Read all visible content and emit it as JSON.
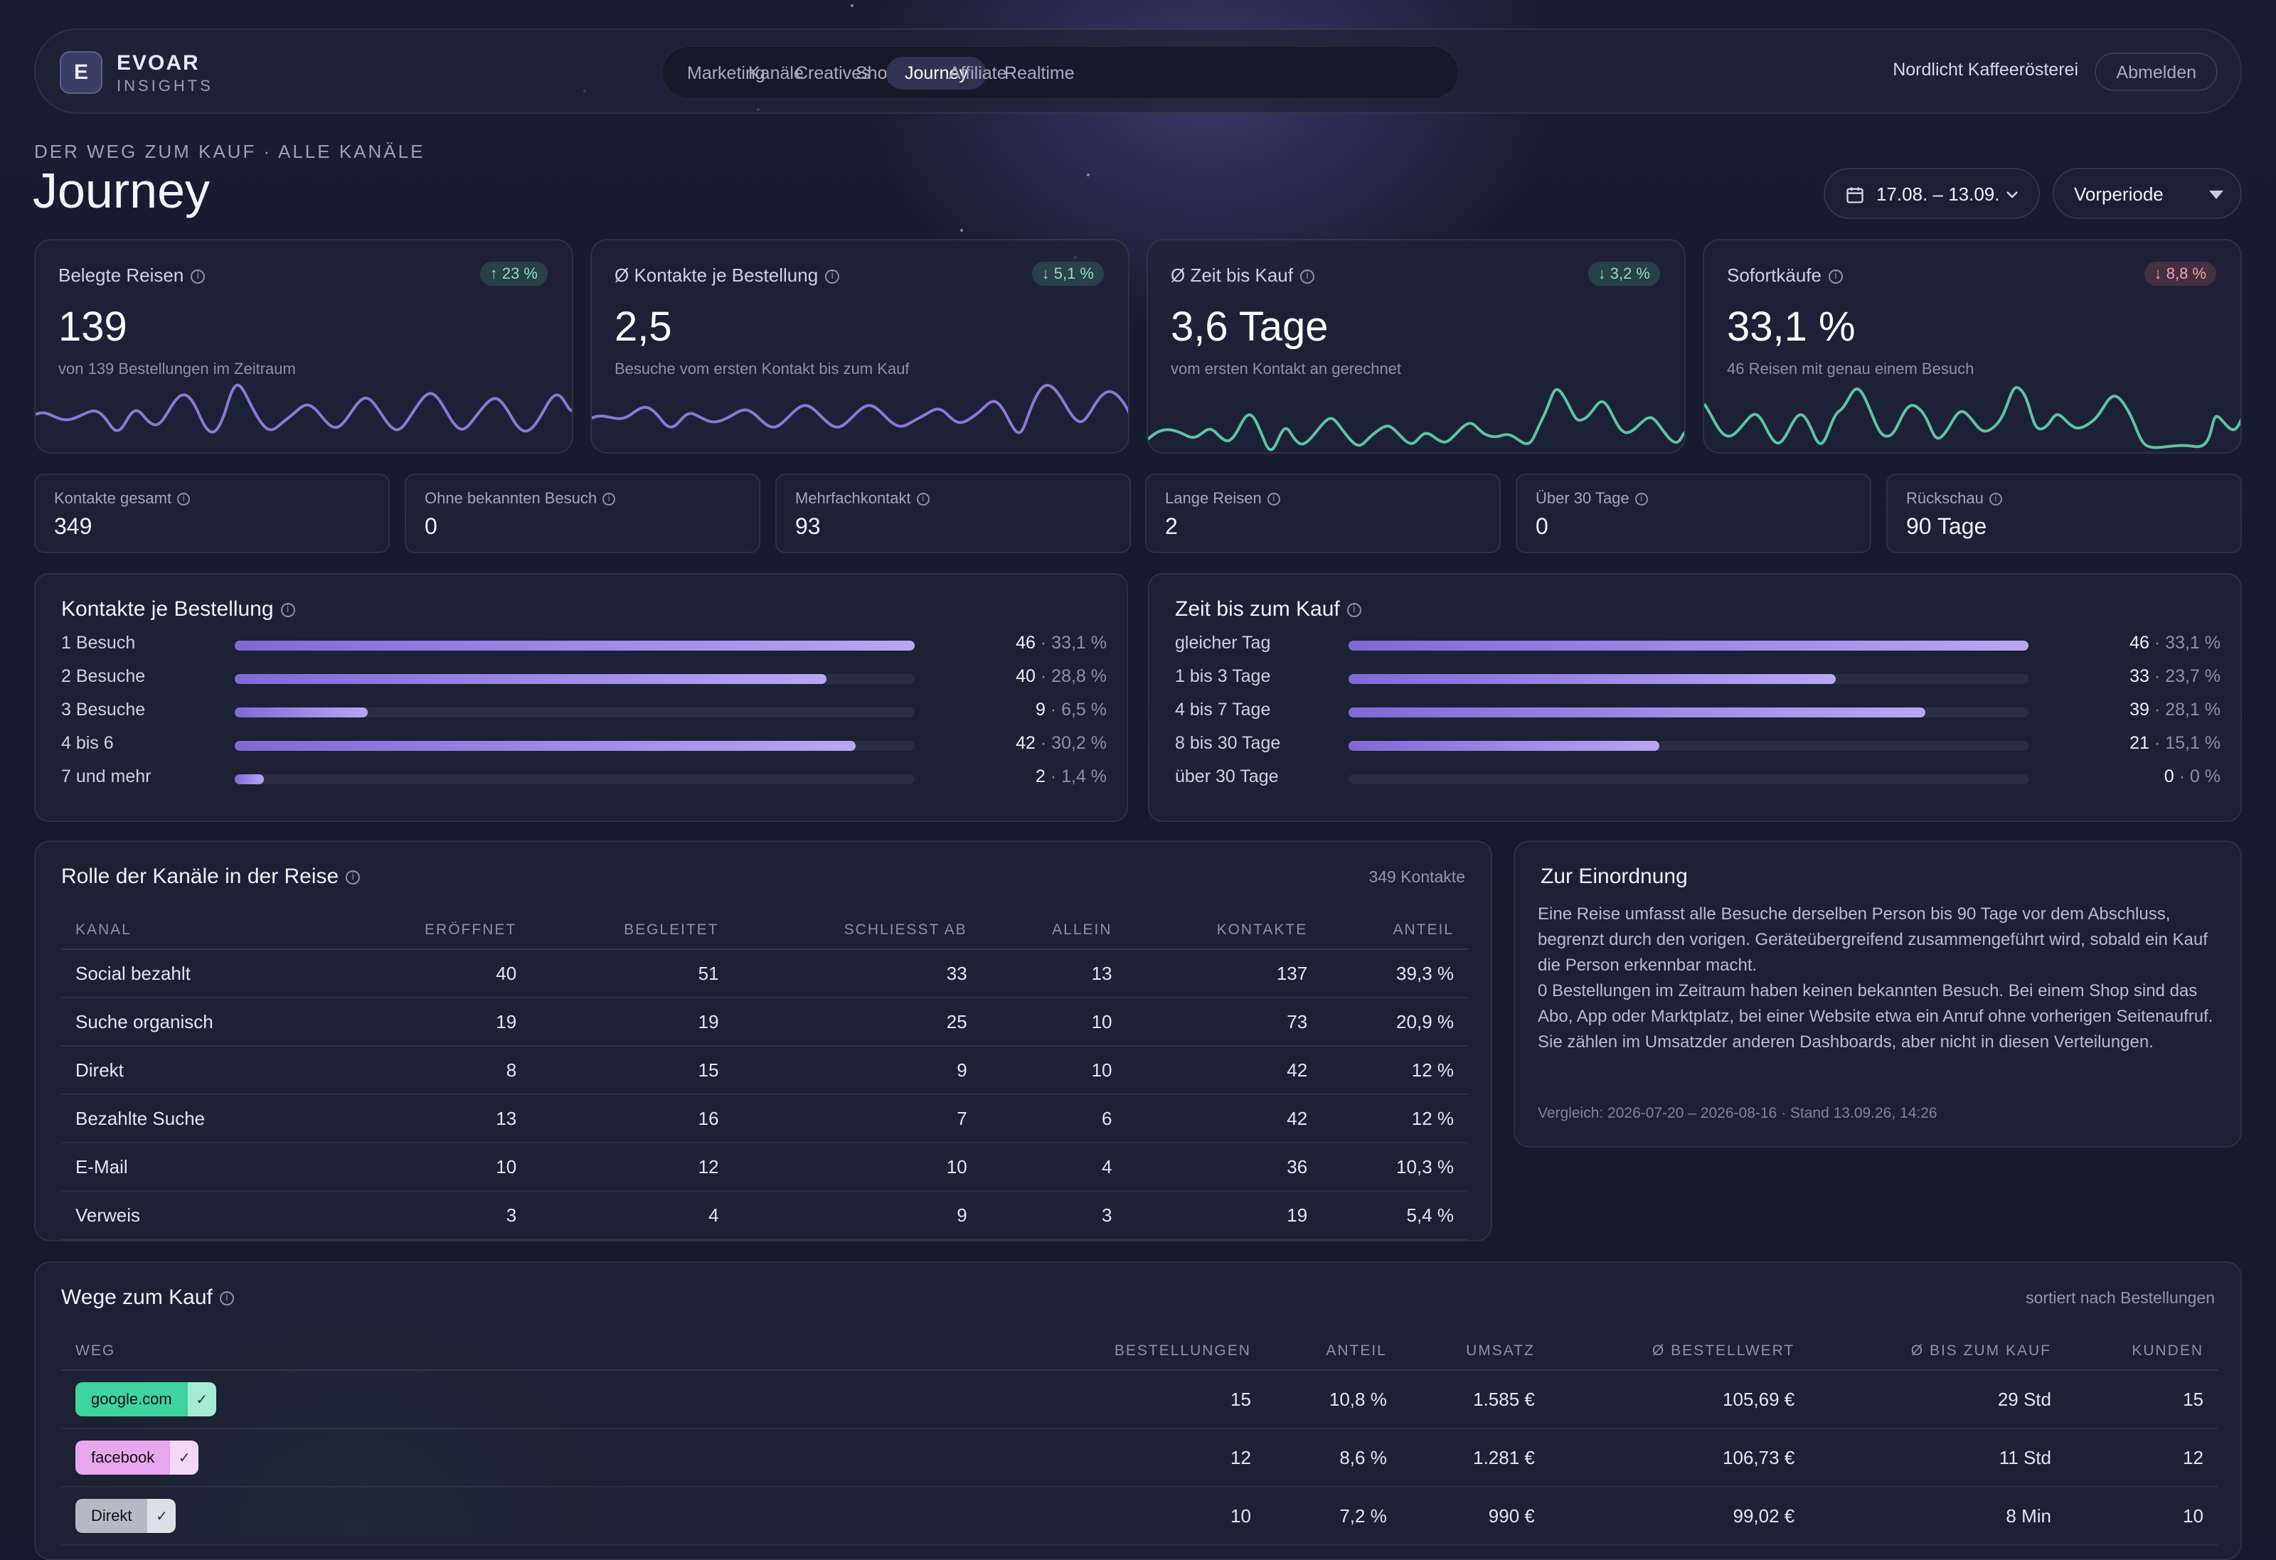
{
  "header": {
    "logo_letter": "E",
    "brand": "EVOAR",
    "brand_sub": "INSIGHTS",
    "nav": [
      "Marketing",
      "Kanäle",
      "Creatives",
      "Shop",
      "Journey",
      "Affiliate",
      "Realtime"
    ],
    "nav_active": "Journey",
    "shop_name": "Nordlicht Kaffeerösterei",
    "logout_label": "Abmelden"
  },
  "page": {
    "eyebrow": "DER WEG ZUM KAUF · ALLE KANÄLE",
    "title": "Journey",
    "date_range": "17.08. – 13.09.",
    "compare": "Vorperiode"
  },
  "kpis": [
    {
      "label": "Belegte Reisen",
      "badge": "↑ 23 %",
      "trend": "good",
      "value": "139",
      "sub": "von 139 Bestellungen im Zeitraum",
      "color": "#8b78d6"
    },
    {
      "label": "Ø Kontakte je Bestellung",
      "badge": "↓ 5,1 %",
      "trend": "good",
      "value": "2,5",
      "sub": "Besuche vom ersten Kontakt bis zum Kauf",
      "color": "#8b78d6"
    },
    {
      "label": "Ø Zeit bis Kauf",
      "badge": "↓ 3,2 %",
      "trend": "good",
      "value": "3,6 Tage",
      "sub": "vom ersten Kontakt an gerechnet",
      "color": "#5cc4a3"
    },
    {
      "label": "Sofortkäufe",
      "badge": "↓ 8,8 %",
      "trend": "bad",
      "value": "33,1 %",
      "sub": "46 Reisen mit genau einem Besuch",
      "color": "#5cc4a3"
    }
  ],
  "stats": [
    {
      "label": "Kontakte gesamt",
      "value": "349"
    },
    {
      "label": "Ohne bekannten Besuch",
      "value": "0"
    },
    {
      "label": "Mehrfachkontakt",
      "value": "93"
    },
    {
      "label": "Lange Reisen",
      "value": "2"
    },
    {
      "label": "Über 30 Tage",
      "value": "0"
    },
    {
      "label": "Rückschau",
      "value": "90 Tage"
    }
  ],
  "contacts_per_order": {
    "title": "Kontakte je Bestellung",
    "rows": [
      {
        "label": "1 Besuch",
        "count": "46",
        "pct": "· 33,1 %",
        "share": 1.0
      },
      {
        "label": "2 Besuche",
        "count": "40",
        "pct": "· 28,8 %",
        "share": 0.87
      },
      {
        "label": "3 Besuche",
        "count": "9",
        "pct": "· 6,5 %",
        "share": 0.196
      },
      {
        "label": "4 bis 6",
        "count": "42",
        "pct": "· 30,2 %",
        "share": 0.913
      },
      {
        "label": "7 und mehr",
        "count": "2",
        "pct": "· 1,4 %",
        "share": 0.043
      }
    ]
  },
  "time_to_purchase": {
    "title": "Zeit bis zum Kauf",
    "rows": [
      {
        "label": "gleicher Tag",
        "count": "46",
        "pct": "· 33,1 %",
        "share": 1.0
      },
      {
        "label": "1 bis 3 Tage",
        "count": "33",
        "pct": "· 23,7 %",
        "share": 0.717
      },
      {
        "label": "4 bis 7 Tage",
        "count": "39",
        "pct": "· 28,1 %",
        "share": 0.848
      },
      {
        "label": "8 bis 30 Tage",
        "count": "21",
        "pct": "· 15,1 %",
        "share": 0.457
      },
      {
        "label": "über 30 Tage",
        "count": "0",
        "pct": "· 0 %",
        "share": 0
      }
    ]
  },
  "channels": {
    "title": "Rolle der Kanäle in der Reise",
    "note": "349 Kontakte",
    "headers": [
      "KANAL",
      "ERÖFFNET",
      "BEGLEITET",
      "SCHLIESST AB",
      "ALLEIN",
      "KONTAKTE",
      "ANTEIL"
    ],
    "rows": [
      [
        "Social bezahlt",
        "40",
        "51",
        "33",
        "13",
        "137",
        "39,3 %"
      ],
      [
        "Suche organisch",
        "19",
        "19",
        "25",
        "10",
        "73",
        "20,9 %"
      ],
      [
        "Direkt",
        "8",
        "15",
        "9",
        "10",
        "42",
        "12 %"
      ],
      [
        "Bezahlte Suche",
        "13",
        "16",
        "7",
        "6",
        "42",
        "12 %"
      ],
      [
        "E-Mail",
        "10",
        "12",
        "10",
        "4",
        "36",
        "10,3 %"
      ],
      [
        "Verweis",
        "3",
        "4",
        "9",
        "3",
        "19",
        "5,4 %"
      ]
    ]
  },
  "context": {
    "title": "Zur Einordnung",
    "p1": "Eine Reise umfasst alle Besuche derselben Person bis 90 Tage vor dem Abschluss, begrenzt durch den vorigen. Geräteübergreifend zusammengeführt wird, sobald ein Kauf die Person erkennbar macht.",
    "p2": "0 Bestellungen im Zeitraum haben keinen bekannten Besuch. Bei einem Shop sind das Abo, App oder Marktplatz, bei einer Website etwa ein Anruf ohne vorherigen Seitenaufruf. Sie zählen im Umsatzder anderen Dashboards, aber nicht in diesen Verteilungen.",
    "footer": "Vergleich: 2026-07-20 – 2026-08-16 · Stand 13.09.26, 14:26"
  },
  "paths": {
    "title": "Wege zum Kauf",
    "note": "sortiert nach Bestellungen",
    "headers": [
      "WEG",
      "BESTELLUNGEN",
      "ANTEIL",
      "UMSATZ",
      "Ø BESTELLWERT",
      "Ø BIS ZUM KAUF",
      "KUNDEN"
    ],
    "rows": [
      {
        "tag": "google.com",
        "color": "#3fd3a0",
        "cells": [
          "15",
          "10,8 %",
          "1.585 €",
          "105,69 €",
          "29 Std",
          "15"
        ]
      },
      {
        "tag": "facebook",
        "color": "#e8a6ef",
        "cells": [
          "12",
          "8,6 %",
          "1.281 €",
          "106,73 €",
          "11 Std",
          "12"
        ]
      },
      {
        "tag": "Direkt",
        "color": "#b6b8c6",
        "cells": [
          "10",
          "7,2 %",
          "990 €",
          "99,02 €",
          "8 Min",
          "10"
        ]
      }
    ]
  },
  "icons": {
    "calendar": "calendar-icon",
    "chevron": "chevron-down-icon",
    "info": "info-icon",
    "check": "check-icon"
  }
}
